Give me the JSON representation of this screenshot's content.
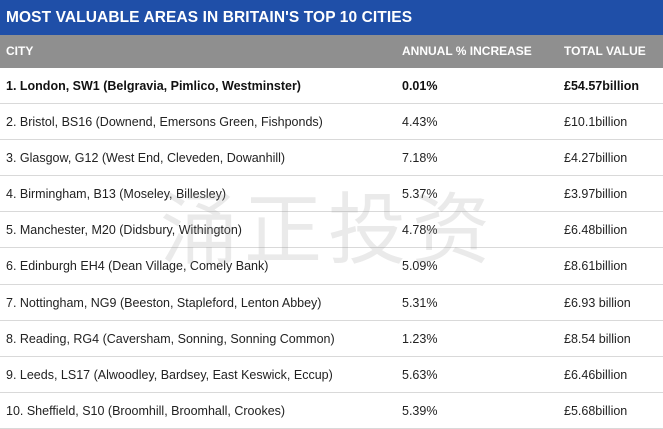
{
  "title": "MOST VALUABLE AREAS IN BRITAIN'S TOP 10 CITIES",
  "headers": {
    "city": "CITY",
    "increase": "ANNUAL % INCREASE",
    "total": "TOTAL VALUE"
  },
  "rows": [
    {
      "city": "1. London, SW1 (Belgravia, Pimlico, Westminster)",
      "increase": "0.01%",
      "total": "£54.57billion"
    },
    {
      "city": "2. Bristol, BS16 (Downend, Emersons Green, Fishponds)",
      "increase": "4.43%",
      "total": "£10.1billion"
    },
    {
      "city": "3. Glasgow, G12 (West End, Cleveden, Dowanhill)",
      "increase": "7.18%",
      "total": "£4.27billion"
    },
    {
      "city": "4. Birmingham, B13 (Moseley, Billesley)",
      "increase": "5.37%",
      "total": "£3.97billion"
    },
    {
      "city": "5. Manchester, M20 (Didsbury, Withington)",
      "increase": "4.78%",
      "total": "£6.48billion"
    },
    {
      "city": "6. Edinburgh EH4 (Dean Village, Comely Bank)",
      "increase": "5.09%",
      "total": "£8.61billion"
    },
    {
      "city": "7. Nottingham, NG9 (Beeston, Stapleford, Lenton Abbey)",
      "increase": "5.31%",
      "total": "£6.93 billion"
    },
    {
      "city": "8. Reading, RG4 (Caversham, Sonning, Sonning Common)",
      "increase": "1.23%",
      "total": "£8.54 billion"
    },
    {
      "city": "9. Leeds, LS17 (Alwoodley, Bardsey, East Keswick, Eccup)",
      "increase": "5.63%",
      "total": "£6.46billion"
    },
    {
      "city": "10. Sheffield, S10 (Broomhill, Broomhall, Crookes)",
      "increase": "5.39%",
      "total": "£5.68billion"
    }
  ],
  "watermark": "涌正投资"
}
